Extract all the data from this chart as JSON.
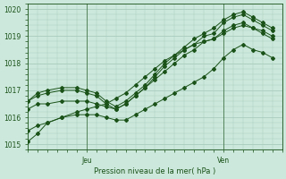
{
  "xlabel": "Pression niveau de la mer( hPa )",
  "ylim": [
    1014.8,
    1020.2
  ],
  "xlim": [
    0,
    52
  ],
  "yticks": [
    1015,
    1016,
    1017,
    1018,
    1019,
    1020
  ],
  "ytick_labels": [
    "1015",
    "1016",
    "1017",
    "1018",
    "1019",
    "1020"
  ],
  "xtick_positions": [
    12,
    40
  ],
  "xtick_labels": [
    "Jeu",
    "Ven"
  ],
  "bg_color": "#cce8dc",
  "grid_color": "#a8ccbc",
  "line_color": "#1a5218",
  "series": [
    {
      "x": [
        0,
        2,
        4,
        7,
        10,
        12,
        14,
        16,
        18,
        20,
        22,
        24,
        26,
        28,
        30,
        32,
        34,
        36,
        38,
        40,
        42,
        44,
        46,
        48,
        50
      ],
      "y": [
        1015.1,
        1015.4,
        1015.8,
        1016.0,
        1016.2,
        1016.3,
        1016.4,
        1016.5,
        1016.7,
        1016.9,
        1017.2,
        1017.5,
        1017.8,
        1018.1,
        1018.3,
        1018.5,
        1018.7,
        1018.8,
        1018.9,
        1019.1,
        1019.3,
        1019.4,
        1019.3,
        1019.2,
        1019.0
      ]
    },
    {
      "x": [
        0,
        2,
        4,
        7,
        10,
        12,
        14,
        16,
        18,
        20,
        22,
        24,
        26,
        28,
        30,
        32,
        34,
        36,
        38,
        40,
        42,
        44,
        46,
        48,
        50
      ],
      "y": [
        1016.3,
        1016.5,
        1016.5,
        1016.6,
        1016.6,
        1016.6,
        1016.5,
        1016.4,
        1016.3,
        1016.5,
        1016.8,
        1017.1,
        1017.4,
        1017.7,
        1018.0,
        1018.3,
        1018.5,
        1018.8,
        1018.9,
        1019.2,
        1019.4,
        1019.5,
        1019.3,
        1019.1,
        1018.9
      ]
    },
    {
      "x": [
        0,
        2,
        4,
        7,
        10,
        12,
        14,
        16,
        18,
        20,
        22,
        24,
        26,
        28,
        30,
        32,
        34,
        36,
        38,
        40,
        42,
        44,
        46,
        48,
        50
      ],
      "y": [
        1016.6,
        1016.8,
        1016.9,
        1017.0,
        1017.0,
        1016.9,
        1016.8,
        1016.5,
        1016.3,
        1016.5,
        1016.8,
        1017.1,
        1017.5,
        1017.9,
        1018.2,
        1018.5,
        1018.7,
        1019.0,
        1019.1,
        1019.5,
        1019.7,
        1019.8,
        1019.6,
        1019.4,
        1019.2
      ]
    },
    {
      "x": [
        0,
        2,
        4,
        7,
        10,
        12,
        14,
        16,
        18,
        20,
        22,
        24,
        26,
        28,
        30,
        32,
        34,
        36,
        38,
        40,
        42,
        44,
        46,
        48,
        50
      ],
      "y": [
        1016.6,
        1016.9,
        1017.0,
        1017.1,
        1017.1,
        1017.0,
        1016.9,
        1016.6,
        1016.4,
        1016.6,
        1016.9,
        1017.2,
        1017.6,
        1018.0,
        1018.3,
        1018.6,
        1018.9,
        1019.1,
        1019.3,
        1019.6,
        1019.8,
        1019.9,
        1019.7,
        1019.5,
        1019.3
      ]
    },
    {
      "x": [
        0,
        2,
        4,
        7,
        10,
        12,
        14,
        16,
        18,
        20,
        22,
        24,
        26,
        28,
        30,
        32,
        34,
        36,
        38,
        40,
        42,
        44,
        46,
        48,
        50
      ],
      "y": [
        1015.5,
        1015.7,
        1015.8,
        1016.0,
        1016.1,
        1016.1,
        1016.1,
        1016.0,
        1015.9,
        1015.9,
        1016.1,
        1016.3,
        1016.5,
        1016.7,
        1016.9,
        1017.1,
        1017.3,
        1017.5,
        1017.8,
        1018.2,
        1018.5,
        1018.7,
        1018.5,
        1018.4,
        1018.2
      ]
    }
  ],
  "jeu_x": 12,
  "ven_x": 40
}
